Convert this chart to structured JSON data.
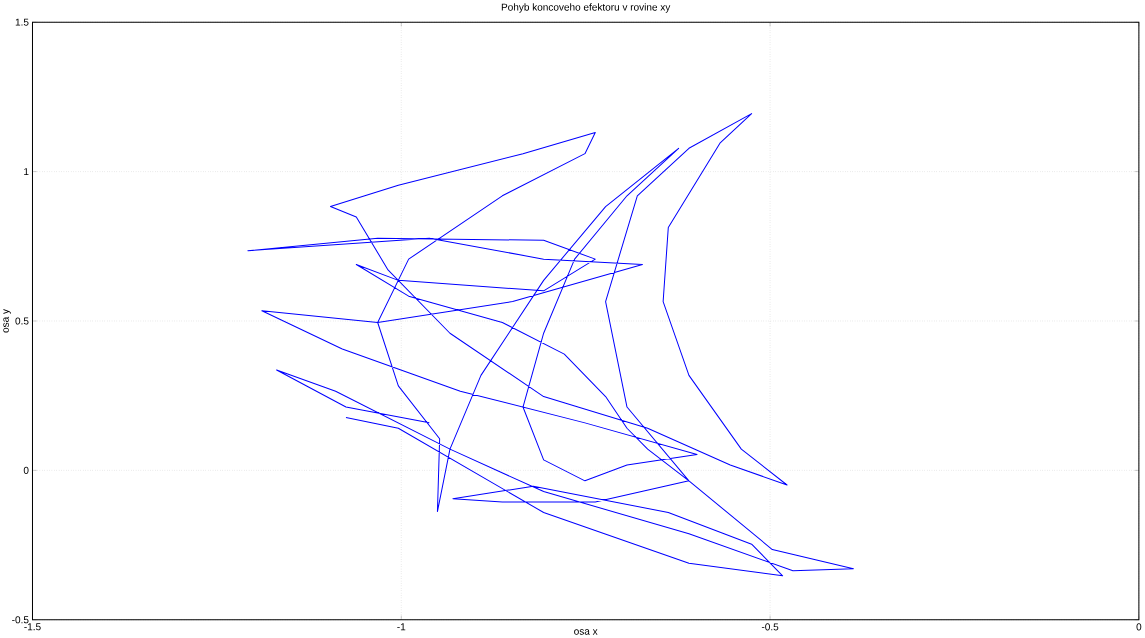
{
  "chart_data": {
    "type": "line",
    "title": "Pohyb koncoveho efektoru v rovine xy",
    "xlabel": "osa x",
    "ylabel": "osa y",
    "xlim": [
      -1.5,
      0
    ],
    "ylim": [
      -0.5,
      1.5
    ],
    "xticks": [
      -1.5,
      -1,
      -0.5,
      0
    ],
    "yticks": [
      -0.5,
      0,
      0.5,
      1,
      1.5
    ],
    "grid": true,
    "series": [
      {
        "color": "#0000ff",
        "x": [
          -0.962,
          -1.075,
          -1.169,
          -1.089,
          -0.934,
          -0.807,
          -0.61,
          -0.469,
          -0.387,
          -0.497,
          -0.61,
          -0.694,
          -0.723,
          -0.68,
          -0.61,
          -0.525,
          -0.568,
          -0.638,
          -0.645,
          -0.61,
          -0.539,
          -0.477,
          -0.554,
          -0.666,
          -0.807,
          -0.934,
          -1.018,
          -1.061,
          -1.096,
          -1.004,
          -0.835,
          -0.737,
          -0.751,
          -0.863,
          -0.99,
          -1.032,
          -1.004,
          -0.948,
          -0.951,
          -0.934,
          -0.892,
          -0.807,
          -0.723,
          -0.624,
          -0.694,
          -0.765,
          -0.807,
          -0.835,
          -0.807,
          -0.751,
          -0.694,
          -0.599,
          -0.751,
          -0.92,
          -1.08,
          -1.189,
          -1.032,
          -0.849,
          -0.673,
          -0.807,
          -0.962,
          -1.208,
          -1.032,
          -0.807,
          -0.737,
          -0.807,
          -1.004,
          -1.061,
          -0.99,
          -0.863,
          -0.779,
          -0.723,
          -0.694,
          -0.666,
          -0.61,
          -0.737,
          -0.863,
          -0.93,
          -0.821,
          -0.638,
          -0.525,
          -0.483,
          -0.61,
          -0.807,
          -1.004,
          -1.075
        ],
        "values": [
          0.159,
          0.212,
          0.336,
          0.265,
          0.071,
          -0.071,
          -0.212,
          -0.336,
          -0.329,
          -0.265,
          -0.035,
          0.212,
          0.565,
          0.919,
          1.078,
          1.194,
          1.095,
          0.813,
          0.565,
          0.318,
          0.071,
          -0.049,
          0.018,
          0.141,
          0.247,
          0.459,
          0.671,
          0.848,
          0.883,
          0.954,
          1.06,
          1.131,
          1.06,
          0.919,
          0.707,
          0.495,
          0.283,
          0.106,
          -0.138,
          0.071,
          0.318,
          0.636,
          0.883,
          1.078,
          0.919,
          0.707,
          0.459,
          0.212,
          0.035,
          -0.035,
          0.018,
          0.053,
          0.159,
          0.265,
          0.406,
          0.534,
          0.495,
          0.565,
          0.689,
          0.707,
          0.777,
          0.735,
          0.777,
          0.77,
          0.707,
          0.601,
          0.636,
          0.689,
          0.583,
          0.495,
          0.389,
          0.247,
          0.141,
          0.071,
          -0.035,
          -0.106,
          -0.106,
          -0.095,
          -0.053,
          -0.141,
          -0.247,
          -0.353,
          -0.311,
          -0.141,
          0.141,
          0.177
        ]
      }
    ]
  }
}
